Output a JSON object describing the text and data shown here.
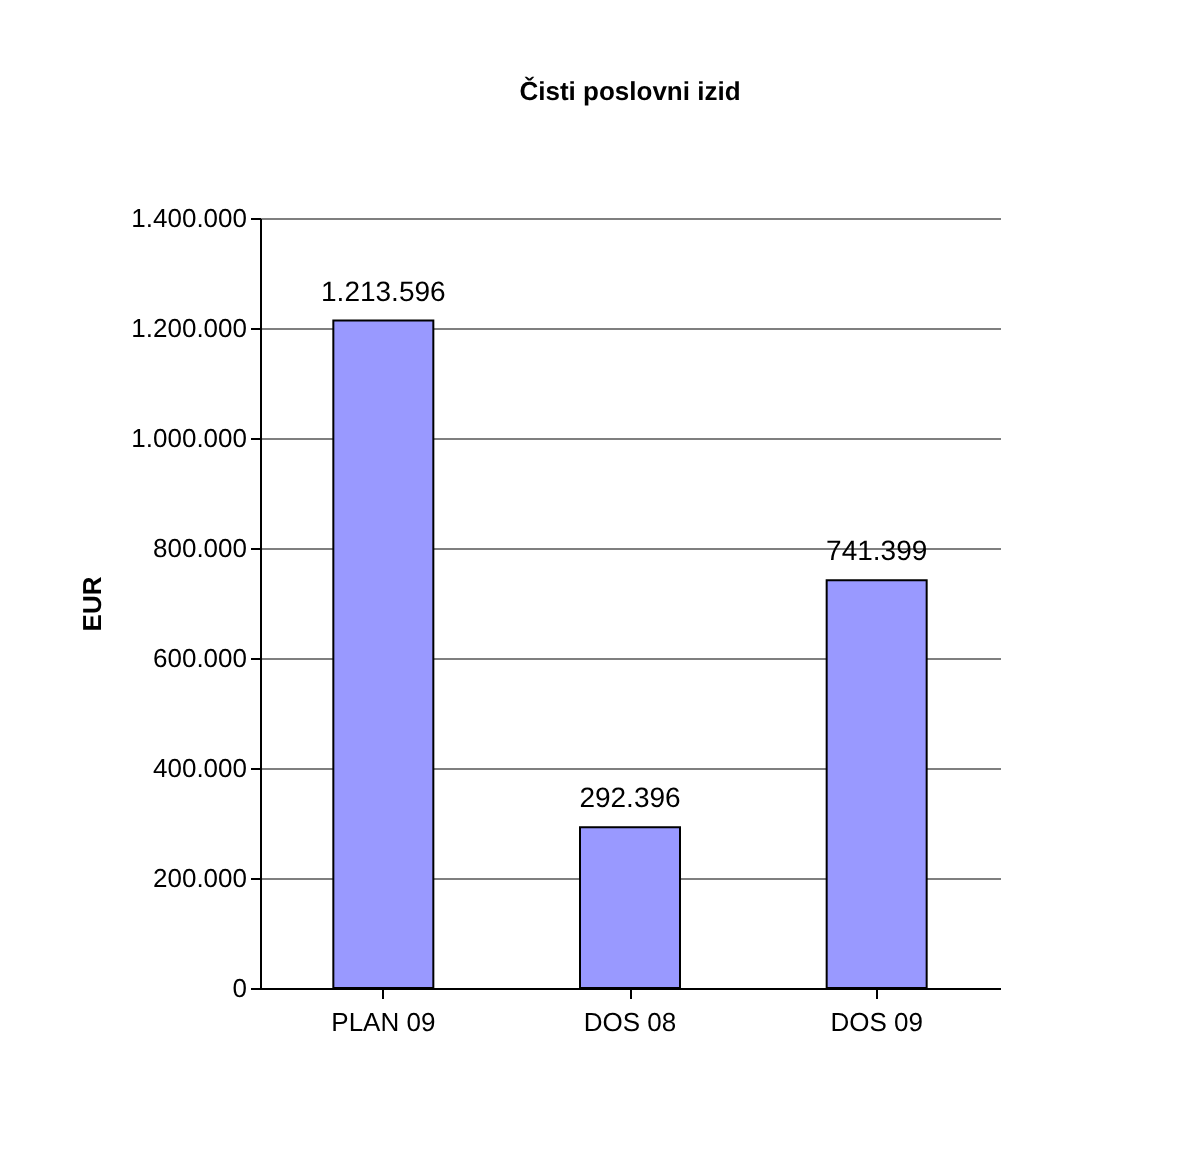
{
  "chart_data": {
    "type": "bar",
    "title": "Čisti poslovni izid",
    "ylabel": "EUR",
    "categories": [
      "PLAN 09",
      "DOS 08",
      "DOS 09"
    ],
    "values": [
      1213596,
      292396,
      741399
    ],
    "value_labels": [
      "1.213.596",
      "292.396",
      "741.399"
    ],
    "color": "#9999ff",
    "ylim": [
      0,
      1400000
    ],
    "yticks": [
      0,
      {
        "value": 200000,
        "label": "200.000"
      },
      {
        "value": 400000,
        "label": "400.000"
      },
      {
        "value": 600000,
        "label": "600.000"
      },
      {
        "value": 800000,
        "label": "800.000"
      },
      {
        "value": 1000000,
        "label": "1.000.000"
      },
      {
        "value": 1200000,
        "label": "1.200.000"
      },
      {
        "value": 1400000,
        "label": "1.400.000"
      }
    ],
    "grid": "y"
  }
}
